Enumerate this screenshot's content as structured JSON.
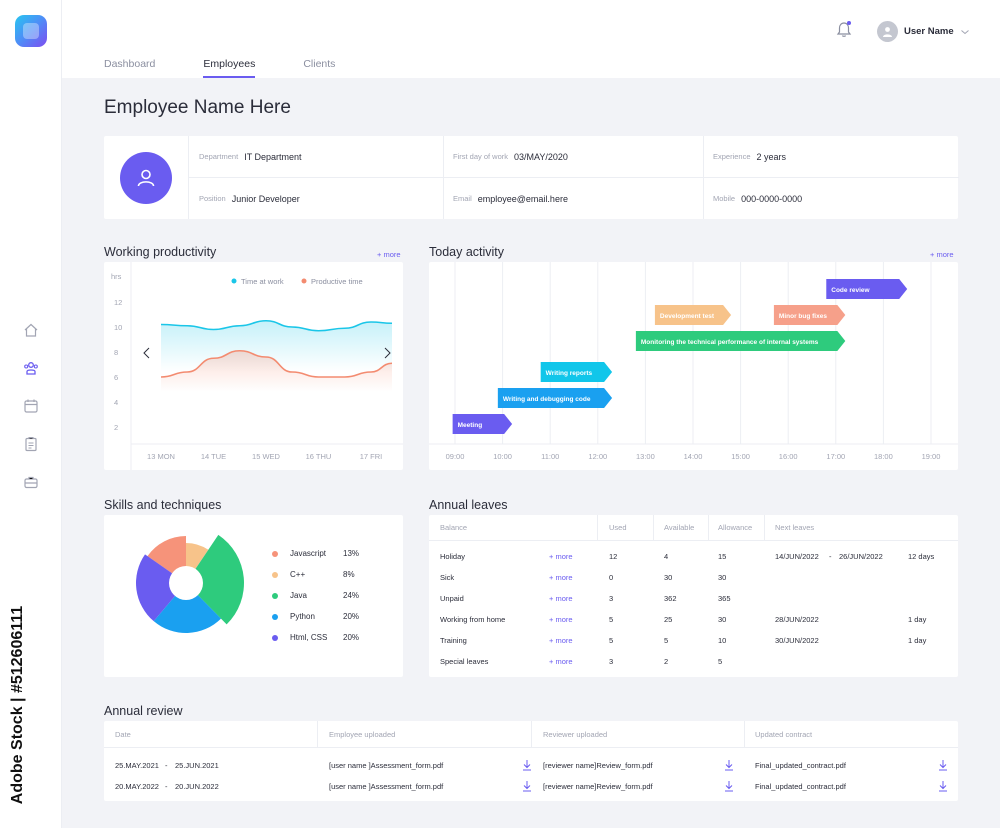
{
  "colors": {
    "accent": "#6a5cf0",
    "cyan": "#1ac6e8",
    "salmon": "#f38b70"
  },
  "sidebar": {
    "icons": [
      "home-icon",
      "team-icon",
      "calendar-icon",
      "clipboard-icon",
      "briefcase-icon"
    ]
  },
  "watermark": "Adobe Stock | #512606111",
  "header": {
    "user_name": "User Name"
  },
  "tabs": [
    {
      "label": "Dashboard",
      "active": false
    },
    {
      "label": "Employees",
      "active": true
    },
    {
      "label": "Clients",
      "active": false
    }
  ],
  "page_title": "Employee Name Here",
  "profile": {
    "department_label": "Department",
    "department": "IT Department",
    "first_day_label": "First day of work",
    "first_day": "03/MAY/2020",
    "experience_label": "Experience",
    "experience": "2 years",
    "position_label": "Position",
    "position": "Junior Developer",
    "email_label": "Email",
    "email": "employee@email.here",
    "mobile_label": "Mobile",
    "mobile": "000-0000-0000"
  },
  "productivity": {
    "title": "Working productivity",
    "more": "+ more",
    "chart_data": {
      "type": "line",
      "ylabel": "hrs",
      "yticks": [
        12,
        10,
        8,
        6,
        4,
        2
      ],
      "ylim": [
        1,
        13
      ],
      "categories": [
        "13 MON",
        "14 TUE",
        "15 WED",
        "16 THU",
        "17 FRI"
      ],
      "series": [
        {
          "name": "Time at work",
          "x": [
            0,
            0.5,
            1,
            1.5,
            2,
            2.5,
            3,
            3.5,
            4,
            4.4
          ],
          "values": [
            10.2,
            10.1,
            9.8,
            10.1,
            10.5,
            10.0,
            9.7,
            9.9,
            10.4,
            10.3
          ]
        },
        {
          "name": "Productive time",
          "x": [
            0,
            0.5,
            1,
            1.5,
            2,
            2.5,
            3,
            3.5,
            4,
            4.4
          ],
          "values": [
            6.0,
            6.4,
            7.5,
            8.1,
            7.6,
            6.4,
            6.0,
            6.0,
            6.4,
            7.1
          ]
        }
      ]
    }
  },
  "activity": {
    "title": "Today activity",
    "more": "+ more",
    "chart_data": {
      "type": "gantt",
      "hours": [
        "09:00",
        "10:00",
        "11:00",
        "12:00",
        "13:00",
        "14:00",
        "15:00",
        "16:00",
        "17:00",
        "18:00",
        "19:00"
      ],
      "tasks": [
        {
          "name": "Code review",
          "start": 16.8,
          "end": 18.5,
          "color": "#6a5cf0"
        },
        {
          "name": "Development test",
          "start": 13.2,
          "end": 14.8,
          "color": "#f7c38a"
        },
        {
          "name": "Minor bug fixes",
          "start": 15.7,
          "end": 17.2,
          "color": "#f6a08a"
        },
        {
          "name": "Monitoring the technical performance of internal systems",
          "start": 12.8,
          "end": 17.2,
          "color": "#2ecb7d"
        },
        {
          "name": "Writing reports",
          "start": 10.8,
          "end": 12.3,
          "color": "#11c6ea"
        },
        {
          "name": "Writing and debugging code",
          "start": 9.9,
          "end": 12.3,
          "color": "#1aa0f0"
        },
        {
          "name": "Meeting",
          "start": 8.95,
          "end": 10.2,
          "color": "#6a5cf0"
        }
      ]
    }
  },
  "skills": {
    "title": "Skills and techniques",
    "chart_data": {
      "type": "pie",
      "variant": "polar-area",
      "slices": [
        {
          "name": "Javascript",
          "value": 13,
          "label": "13%",
          "color": "#f6937a"
        },
        {
          "name": "C++",
          "value": 8,
          "label": "8%",
          "color": "#f7c38a"
        },
        {
          "name": "Java",
          "value": 24,
          "label": "24%",
          "color": "#2ecb7d"
        },
        {
          "name": "Python",
          "value": 20,
          "label": "20%",
          "color": "#1aa0f0"
        },
        {
          "name": "Html, CSS",
          "value": 20,
          "label": "20%",
          "color": "#6a5cf0"
        }
      ]
    }
  },
  "leaves": {
    "title": "Annual leaves",
    "headers": {
      "balance": "Balance",
      "used": "Used",
      "available": "Available",
      "allowance": "Allowance",
      "next": "Next leaves"
    },
    "more_label": "+ more",
    "rows": [
      {
        "name": "Holiday",
        "used": "12",
        "available": "4",
        "allowance": "15",
        "from": "14/JUN/2022",
        "sep": "-",
        "to": "26/JUN/2022",
        "days": "12 days"
      },
      {
        "name": "Sick",
        "used": "0",
        "available": "30",
        "allowance": "30",
        "from": "",
        "sep": "",
        "to": "",
        "days": ""
      },
      {
        "name": "Unpaid",
        "used": "3",
        "available": "362",
        "allowance": "365",
        "from": "",
        "sep": "",
        "to": "",
        "days": ""
      },
      {
        "name": "Working from home",
        "used": "5",
        "available": "25",
        "allowance": "30",
        "from": "28/JUN/2022",
        "sep": "",
        "to": "",
        "days": "1 day"
      },
      {
        "name": "Training",
        "used": "5",
        "available": "5",
        "allowance": "10",
        "from": "30/JUN/2022",
        "sep": "",
        "to": "",
        "days": "1 day"
      },
      {
        "name": "Special leaves",
        "used": "3",
        "available": "2",
        "allowance": "5",
        "from": "",
        "sep": "",
        "to": "",
        "days": ""
      }
    ]
  },
  "review": {
    "title": "Annual review",
    "headers": {
      "date": "Date",
      "employee": "Employee uploaded",
      "reviewer": "Reviewer uploaded",
      "contract": "Updated contract"
    },
    "rows": [
      {
        "from": "25.MAY.2021",
        "sep": "-",
        "to": "25.JUN.2021",
        "employee_file": "[user name ]Assessment_form.pdf",
        "reviewer_file": "[reviewer name]Review_form.pdf",
        "contract_file": "Final_updated_contract.pdf"
      },
      {
        "from": "20.MAY.2022",
        "sep": "-",
        "to": "20.JUN.2022",
        "employee_file": "[user name ]Assessment_form.pdf",
        "reviewer_file": "[reviewer name]Review_form.pdf",
        "contract_file": "Final_updated_contract.pdf"
      }
    ]
  }
}
